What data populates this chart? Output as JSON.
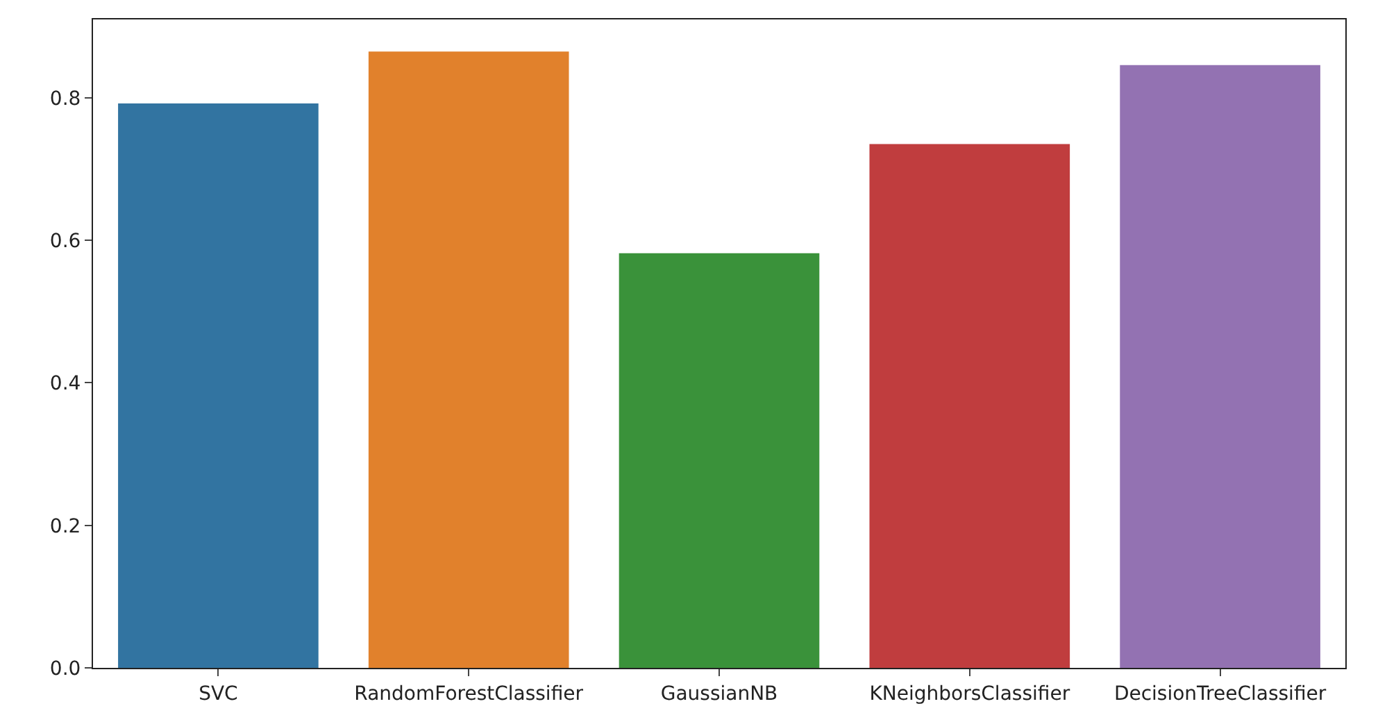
{
  "chart_data": {
    "type": "bar",
    "categories": [
      "SVC",
      "RandomForestClassifier",
      "GaussianNB",
      "KNeighborsClassifier",
      "DecisionTreeClassifier"
    ],
    "values": [
      0.792,
      0.865,
      0.582,
      0.735,
      0.846
    ],
    "colors": [
      "#3274a1",
      "#e1812c",
      "#3a923a",
      "#c03d3e",
      "#9372b2"
    ],
    "ylim": [
      0,
      0.91
    ],
    "yticks": [
      {
        "value": 0,
        "label": "0.0"
      },
      0.2,
      0.4,
      0.6,
      0.8
    ],
    "grid": false
  }
}
